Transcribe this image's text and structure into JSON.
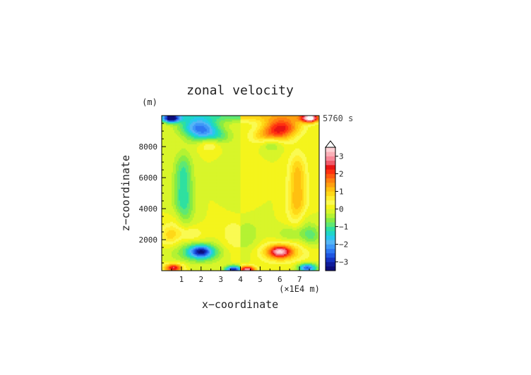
{
  "chart_data": {
    "type": "heatmap",
    "title": "zonal velocity",
    "xlabel": "x−coordinate",
    "ylabel": "z−coordinate",
    "x_unit": "(×1E4 m)",
    "y_unit": "(m)",
    "time_label": "5760 s",
    "xlim": [
      0,
      8
    ],
    "ylim": [
      0,
      10000
    ],
    "x_ticks": [
      1,
      2,
      3,
      4,
      5,
      6,
      7
    ],
    "y_ticks": [
      2000,
      4000,
      6000,
      8000
    ],
    "colorbar": {
      "min": -3.5,
      "max": 3.5,
      "step": 0.25,
      "ticks": [
        3,
        2,
        1,
        0,
        -1,
        -2,
        -3
      ],
      "overflow_high": "white-triangle",
      "colors": [
        "#0d0d7a",
        "#101c9a",
        "#1533c2",
        "#1f55e0",
        "#2e78f2",
        "#3f98f8",
        "#55b6f6",
        "#27c8ee",
        "#1fd6c8",
        "#2fe0a0",
        "#5fe873",
        "#86ec45",
        "#b4f233",
        "#d8f52a",
        "#f4f41c",
        "#fafa52",
        "#ffee2e",
        "#ffd818",
        "#ffc010",
        "#ffa010",
        "#ff8010",
        "#ff5a10",
        "#ff3010",
        "#e81414",
        "#f05a6a",
        "#f88898",
        "#fbb0b8",
        "#ffd2d6"
      ]
    },
    "note": "contour field, antisymmetric about x = 4: positive (warm) in the right half, negative (cool) in the left half"
  }
}
